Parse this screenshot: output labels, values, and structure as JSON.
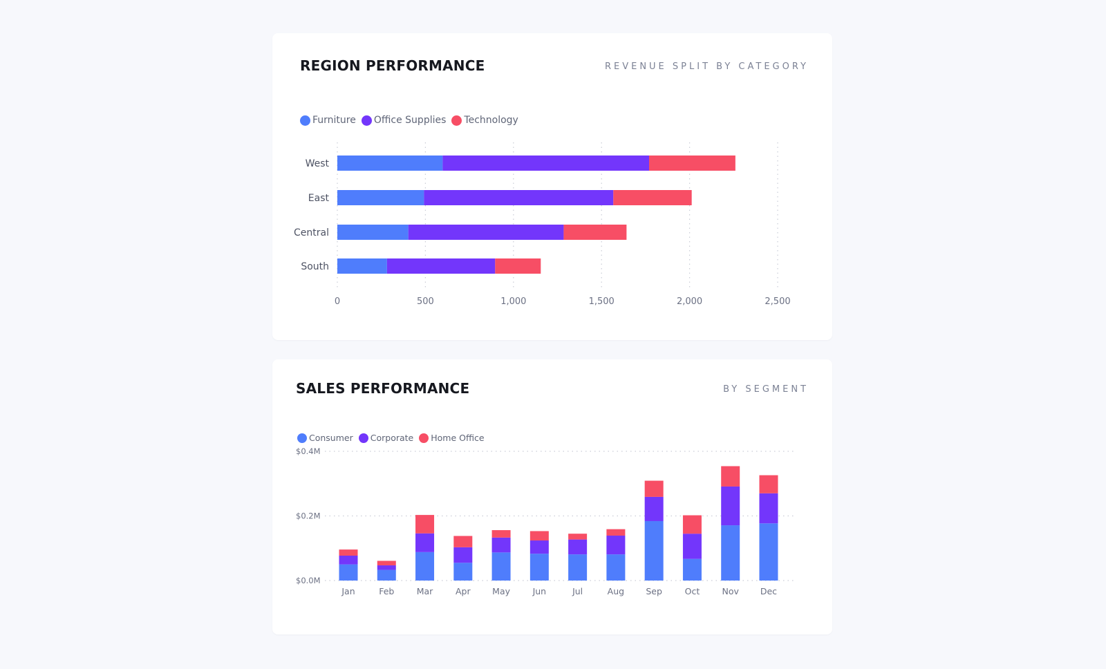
{
  "region_card": {
    "title": "REGION PERFORMANCE",
    "subtitle": "REVENUE SPLIT BY CATEGORY"
  },
  "sales_card": {
    "title": "SALES PERFORMANCE",
    "subtitle": "BY SEGMENT"
  },
  "colors": {
    "blue": "#4f7dfc",
    "purple": "#7336fb",
    "red": "#f74e65"
  },
  "chart_data": [
    {
      "type": "bar",
      "orientation": "horizontal",
      "stacked": true,
      "categories": [
        "West",
        "East",
        "Central",
        "South"
      ],
      "series": [
        {
          "name": "Furniture",
          "color": "#4f7dfc",
          "values": [
            598,
            492,
            403,
            282
          ]
        },
        {
          "name": "Office Supplies",
          "color": "#7336fb",
          "values": [
            1172,
            1075,
            882,
            614
          ]
        },
        {
          "name": "Technology",
          "color": "#f74e65",
          "values": [
            490,
            445,
            357,
            259
          ]
        }
      ],
      "xlim": [
        0,
        2500
      ],
      "x_ticks": [
        "0",
        "500",
        "1,000",
        "1,500",
        "2,000",
        "2,500"
      ],
      "grid": true,
      "legend": "top-left"
    },
    {
      "type": "bar",
      "orientation": "vertical",
      "stacked": true,
      "categories": [
        "Jan",
        "Feb",
        "Mar",
        "Apr",
        "May",
        "Jun",
        "Jul",
        "Aug",
        "Sep",
        "Oct",
        "Nov",
        "Dec"
      ],
      "series": [
        {
          "name": "Consumer",
          "color": "#4f7dfc",
          "values": [
            0.05,
            0.033,
            0.088,
            0.055,
            0.087,
            0.083,
            0.081,
            0.081,
            0.184,
            0.067,
            0.171,
            0.177
          ]
        },
        {
          "name": "Corporate",
          "color": "#7336fb",
          "values": [
            0.027,
            0.014,
            0.058,
            0.048,
            0.046,
            0.041,
            0.046,
            0.058,
            0.075,
            0.078,
            0.12,
            0.093
          ]
        },
        {
          "name": "Home Office",
          "color": "#f74e65",
          "values": [
            0.019,
            0.014,
            0.057,
            0.035,
            0.023,
            0.029,
            0.018,
            0.02,
            0.05,
            0.057,
            0.063,
            0.056
          ]
        }
      ],
      "ylim": [
        0,
        0.4
      ],
      "y_ticks": [
        "$0.0M",
        "$0.2M",
        "$0.4M"
      ],
      "grid": true,
      "legend": "top-left"
    }
  ]
}
